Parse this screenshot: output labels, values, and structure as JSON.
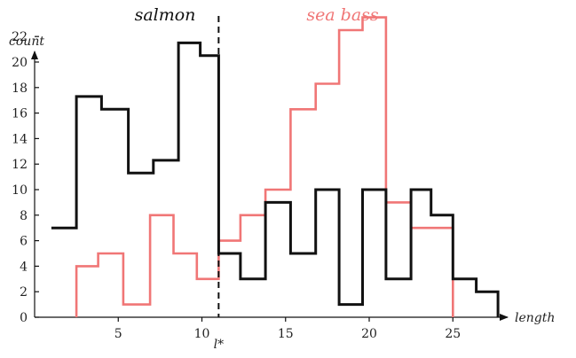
{
  "chart_data": {
    "type": "line",
    "xlabel": "length",
    "ylabel": "count",
    "xlim": [
      0,
      28
    ],
    "ylim": [
      0,
      23
    ],
    "x_ticks": [
      5,
      10,
      15,
      20,
      25
    ],
    "y_ticks": [
      0,
      2,
      4,
      6,
      8,
      10,
      12,
      14,
      16,
      18,
      20,
      22
    ],
    "threshold": {
      "x": 11,
      "label": "l*"
    },
    "series": [
      {
        "name": "salmon",
        "color": "#111111",
        "steps": [
          [
            1,
            7
          ],
          [
            2.5,
            7
          ],
          [
            2.5,
            17.3
          ],
          [
            4,
            17.3
          ],
          [
            4,
            16.3
          ],
          [
            5.6,
            16.3
          ],
          [
            5.6,
            11.3
          ],
          [
            7.1,
            11.3
          ],
          [
            7.1,
            12.3
          ],
          [
            8.6,
            12.3
          ],
          [
            8.6,
            21.5
          ],
          [
            9.9,
            21.5
          ],
          [
            9.9,
            20.5
          ],
          [
            11,
            20.5
          ],
          [
            11,
            5
          ],
          [
            12.3,
            5
          ],
          [
            12.3,
            3
          ],
          [
            13.8,
            3
          ],
          [
            13.8,
            9
          ],
          [
            15.3,
            9
          ],
          [
            15.3,
            5
          ],
          [
            16.8,
            5
          ],
          [
            16.8,
            10
          ],
          [
            18.2,
            10
          ],
          [
            18.2,
            1
          ],
          [
            19.6,
            1
          ],
          [
            19.6,
            10
          ],
          [
            21,
            10
          ],
          [
            21,
            3
          ],
          [
            22.5,
            3
          ],
          [
            22.5,
            10
          ],
          [
            23.7,
            10
          ],
          [
            23.7,
            8
          ],
          [
            25,
            8
          ],
          [
            25,
            3
          ],
          [
            26.4,
            3
          ],
          [
            26.4,
            2
          ],
          [
            27.7,
            2
          ],
          [
            27.7,
            0
          ]
        ]
      },
      {
        "name": "sea bass",
        "color": "#f07676",
        "steps": [
          [
            2.5,
            0
          ],
          [
            2.5,
            4
          ],
          [
            3.8,
            4
          ],
          [
            3.8,
            5
          ],
          [
            5.3,
            5
          ],
          [
            5.3,
            1
          ],
          [
            6.9,
            1
          ],
          [
            6.9,
            8
          ],
          [
            8.3,
            8
          ],
          [
            8.3,
            5
          ],
          [
            9.7,
            5
          ],
          [
            9.7,
            3
          ],
          [
            11,
            3
          ],
          [
            11,
            6
          ],
          [
            12.3,
            6
          ],
          [
            12.3,
            8
          ],
          [
            13.8,
            8
          ],
          [
            13.8,
            10
          ],
          [
            15.3,
            10
          ],
          [
            15.3,
            16.3
          ],
          [
            16.8,
            16.3
          ],
          [
            16.8,
            18.3
          ],
          [
            18.2,
            18.3
          ],
          [
            18.2,
            22.5
          ],
          [
            19.6,
            22.5
          ],
          [
            19.6,
            23.5
          ],
          [
            21,
            23.5
          ],
          [
            21,
            9
          ],
          [
            22.5,
            9
          ],
          [
            22.5,
            7
          ],
          [
            25,
            7
          ],
          [
            25,
            0
          ]
        ]
      }
    ]
  }
}
